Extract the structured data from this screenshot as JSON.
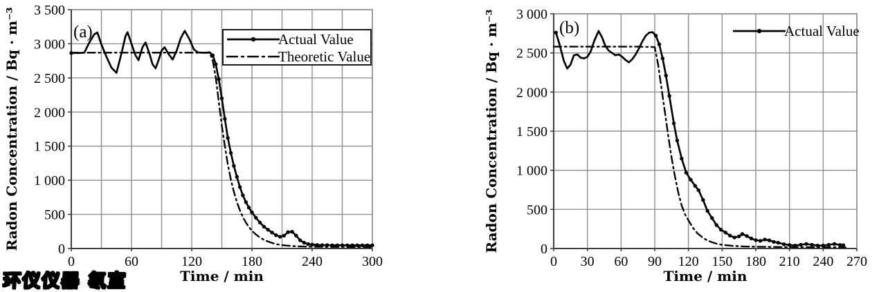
{
  "watermark": {
    "text": "环仪仪器 氡室"
  },
  "colors": {
    "background": "#ffffff",
    "grid": "#8f8f8f",
    "axis": "#3f3f3f",
    "line": "#000000",
    "text": "#000000",
    "watermark_fill": "#ffe210",
    "watermark_outline": "#000000"
  },
  "chart_data": [
    {
      "type": "line",
      "panel_label": "(a)",
      "xlabel": "Time / min",
      "ylabel": "Radon Concentration / Bq · m⁻³",
      "xlim": [
        0,
        300
      ],
      "ylim": [
        0,
        3500
      ],
      "xticks": [
        0,
        60,
        120,
        180,
        240,
        300
      ],
      "xtick_labels": [
        "0",
        "60",
        "120",
        "180",
        "240",
        "300"
      ],
      "yticks": [
        0,
        500,
        1000,
        1500,
        2000,
        2500,
        3000,
        3500
      ],
      "ytick_labels": [
        "0",
        "500",
        "1 000",
        "1 500",
        "2 000",
        "2 500",
        "3 000",
        "3 500"
      ],
      "x_grid_interval": 30,
      "y_grid_interval": 500,
      "grid": true,
      "legend": {
        "position": "upper right",
        "border": true,
        "entries": [
          {
            "label": "Actual Value",
            "style": "solid-marker"
          },
          {
            "label": "Theoretic Value",
            "style": "dash-dot"
          }
        ]
      },
      "series": [
        {
          "name": "Actual Value",
          "style": "solid-marker",
          "marker_first": true,
          "marker_from_t": 141,
          "points": [
            [
              0,
              2865
            ],
            [
              4,
              2865
            ],
            [
              8,
              2865
            ],
            [
              13,
              2870
            ],
            [
              18,
              3020
            ],
            [
              23,
              3140
            ],
            [
              26,
              3165
            ],
            [
              30,
              2990
            ],
            [
              35,
              2810
            ],
            [
              40,
              2650
            ],
            [
              45,
              2575
            ],
            [
              50,
              2860
            ],
            [
              54,
              3110
            ],
            [
              56,
              3170
            ],
            [
              60,
              3000
            ],
            [
              64,
              2830
            ],
            [
              67,
              2760
            ],
            [
              71,
              2950
            ],
            [
              74,
              3020
            ],
            [
              78,
              2850
            ],
            [
              81,
              2700
            ],
            [
              84,
              2640
            ],
            [
              87,
              2760
            ],
            [
              90,
              2900
            ],
            [
              93,
              2950
            ],
            [
              97,
              2850
            ],
            [
              101,
              2770
            ],
            [
              105,
              2900
            ],
            [
              109,
              3080
            ],
            [
              113,
              3190
            ],
            [
              118,
              3060
            ],
            [
              122,
              2920
            ],
            [
              126,
              2875
            ],
            [
              130,
              2870
            ],
            [
              134,
              2870
            ],
            [
              138,
              2875
            ],
            [
              141,
              2830
            ],
            [
              144,
              2700
            ],
            [
              147,
              2480
            ],
            [
              150,
              2200
            ],
            [
              153,
              1900
            ],
            [
              156,
              1620
            ],
            [
              159,
              1400
            ],
            [
              162,
              1210
            ],
            [
              165,
              1050
            ],
            [
              168,
              900
            ],
            [
              171,
              780
            ],
            [
              174,
              680
            ],
            [
              177,
              600
            ],
            [
              180,
              530
            ],
            [
              184,
              450
            ],
            [
              188,
              380
            ],
            [
              192,
              320
            ],
            [
              196,
              275
            ],
            [
              200,
              235
            ],
            [
              204,
              195
            ],
            [
              208,
              172
            ],
            [
              212,
              188
            ],
            [
              216,
              240
            ],
            [
              220,
              246
            ],
            [
              224,
              190
            ],
            [
              228,
              120
            ],
            [
              232,
              85
            ],
            [
              236,
              65
            ],
            [
              240,
              58
            ],
            [
              245,
              52
            ],
            [
              250,
              50
            ],
            [
              255,
              50
            ],
            [
              260,
              48
            ],
            [
              265,
              48
            ],
            [
              270,
              48
            ],
            [
              275,
              48
            ],
            [
              280,
              48
            ],
            [
              285,
              48
            ],
            [
              290,
              48
            ],
            [
              295,
              48
            ],
            [
              300,
              48
            ]
          ]
        },
        {
          "name": "Theoretic Value",
          "style": "dash-dot",
          "points": [
            [
              0,
              2870
            ],
            [
              20,
              2870
            ],
            [
              40,
              2870
            ],
            [
              60,
              2870
            ],
            [
              80,
              2870
            ],
            [
              100,
              2870
            ],
            [
              120,
              2870
            ],
            [
              138,
              2868
            ],
            [
              141,
              2750
            ],
            [
              144,
              2500
            ],
            [
              147,
              2150
            ],
            [
              150,
              1800
            ],
            [
              153,
              1500
            ],
            [
              156,
              1230
            ],
            [
              159,
              1010
            ],
            [
              162,
              830
            ],
            [
              165,
              680
            ],
            [
              168,
              560
            ],
            [
              171,
              460
            ],
            [
              174,
              380
            ],
            [
              177,
              315
            ],
            [
              180,
              260
            ],
            [
              184,
              205
            ],
            [
              188,
              160
            ],
            [
              192,
              128
            ],
            [
              196,
              102
            ],
            [
              200,
              82
            ],
            [
              205,
              62
            ],
            [
              210,
              50
            ],
            [
              215,
              42
            ],
            [
              220,
              36
            ],
            [
              225,
              32
            ],
            [
              230,
              29
            ],
            [
              240,
              26
            ],
            [
              250,
              24
            ],
            [
              260,
              23
            ],
            [
              270,
              23
            ],
            [
              280,
              22
            ],
            [
              290,
              22
            ],
            [
              300,
              22
            ]
          ]
        }
      ]
    },
    {
      "type": "line",
      "panel_label": "(b)",
      "xlabel": "Time / min",
      "ylabel": "Radon Concentration / Bq · m⁻³",
      "xlim": [
        0,
        270
      ],
      "ylim": [
        0,
        3000
      ],
      "xticks": [
        0,
        30,
        60,
        90,
        120,
        150,
        180,
        210,
        240,
        270
      ],
      "xtick_labels": [
        "0",
        "30",
        "60",
        "90",
        "120",
        "150",
        "180",
        "210",
        "240",
        "270"
      ],
      "yticks": [
        0,
        500,
        1000,
        1500,
        2000,
        2500,
        3000
      ],
      "ytick_labels": [
        "0",
        "500",
        "1 000",
        "1 500",
        "2 000",
        "2 500",
        "3 000"
      ],
      "x_grid_interval": 30,
      "y_grid_interval": 500,
      "grid": true,
      "legend": {
        "position": "upper right",
        "border": false,
        "entries": [
          {
            "label": "Actual Value",
            "style": "solid-marker"
          }
        ]
      },
      "series": [
        {
          "name": "Actual Value",
          "style": "solid-marker",
          "marker_first": true,
          "marker_from_t": 91,
          "points": [
            [
              2,
              2760
            ],
            [
              5,
              2620
            ],
            [
              9,
              2400
            ],
            [
              12,
              2300
            ],
            [
              15,
              2350
            ],
            [
              18,
              2470
            ],
            [
              21,
              2480
            ],
            [
              24,
              2440
            ],
            [
              27,
              2430
            ],
            [
              30,
              2450
            ],
            [
              33,
              2520
            ],
            [
              36,
              2650
            ],
            [
              40,
              2780
            ],
            [
              43,
              2700
            ],
            [
              46,
              2590
            ],
            [
              49,
              2530
            ],
            [
              52,
              2500
            ],
            [
              55,
              2470
            ],
            [
              58,
              2480
            ],
            [
              61,
              2450
            ],
            [
              64,
              2410
            ],
            [
              67,
              2380
            ],
            [
              70,
              2420
            ],
            [
              73,
              2480
            ],
            [
              76,
              2560
            ],
            [
              79,
              2650
            ],
            [
              82,
              2720
            ],
            [
              85,
              2760
            ],
            [
              88,
              2765
            ],
            [
              91,
              2720
            ],
            [
              94,
              2610
            ],
            [
              97,
              2430
            ],
            [
              100,
              2210
            ],
            [
              103,
              1950
            ],
            [
              107,
              1600
            ],
            [
              110,
              1380
            ],
            [
              114,
              1150
            ],
            [
              118,
              970
            ],
            [
              122,
              880
            ],
            [
              126,
              800
            ],
            [
              129,
              745
            ],
            [
              133,
              620
            ],
            [
              137,
              480
            ],
            [
              141,
              390
            ],
            [
              145,
              300
            ],
            [
              149,
              240
            ],
            [
              153,
              205
            ],
            [
              157,
              165
            ],
            [
              161,
              140
            ],
            [
              165,
              155
            ],
            [
              168,
              185
            ],
            [
              172,
              160
            ],
            [
              176,
              128
            ],
            [
              180,
              108
            ],
            [
              184,
              98
            ],
            [
              188,
              115
            ],
            [
              192,
              104
            ],
            [
              196,
              85
            ],
            [
              200,
              74
            ],
            [
              205,
              55
            ],
            [
              210,
              45
            ],
            [
              215,
              38
            ],
            [
              220,
              48
            ],
            [
              225,
              58
            ],
            [
              230,
              48
            ],
            [
              235,
              38
            ],
            [
              240,
              38
            ],
            [
              245,
              48
            ],
            [
              250,
              58
            ],
            [
              255,
              46
            ],
            [
              258,
              42
            ]
          ]
        },
        {
          "name": "Theoretic Value",
          "style": "dash-dot",
          "points": [
            [
              0,
              2580
            ],
            [
              15,
              2580
            ],
            [
              30,
              2580
            ],
            [
              45,
              2580
            ],
            [
              60,
              2580
            ],
            [
              75,
              2580
            ],
            [
              90,
              2575
            ],
            [
              93,
              2350
            ],
            [
              96,
              2050
            ],
            [
              99,
              1750
            ],
            [
              102,
              1440
            ],
            [
              105,
              1160
            ],
            [
              108,
              920
            ],
            [
              111,
              710
            ],
            [
              114,
              550
            ],
            [
              117,
              435
            ],
            [
              120,
              360
            ],
            [
              124,
              265
            ],
            [
              128,
              195
            ],
            [
              132,
              148
            ],
            [
              136,
              110
            ],
            [
              140,
              85
            ],
            [
              145,
              62
            ],
            [
              150,
              48
            ],
            [
              155,
              40
            ],
            [
              160,
              33
            ],
            [
              165,
              29
            ],
            [
              170,
              26
            ],
            [
              180,
              23
            ],
            [
              190,
              21
            ],
            [
              200,
              19
            ],
            [
              210,
              18
            ],
            [
              220,
              17
            ],
            [
              230,
              17
            ],
            [
              240,
              16
            ],
            [
              250,
              16
            ],
            [
              260,
              15
            ]
          ]
        }
      ]
    }
  ]
}
